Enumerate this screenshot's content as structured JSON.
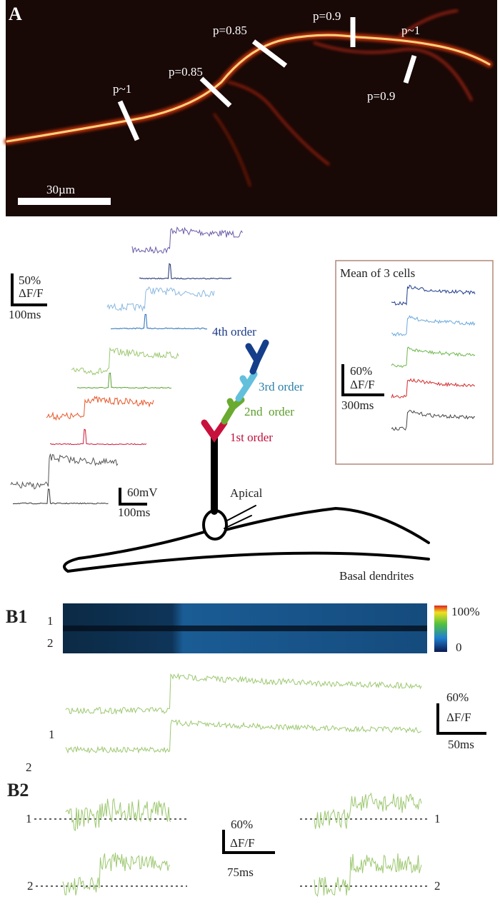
{
  "panel_a": {
    "label": "A",
    "labels": [
      "p~1",
      "p=0.85",
      "p=0.85",
      "p=0.9",
      "p~1",
      "p=0.9"
    ],
    "scale_bar": "30µm"
  },
  "schematic": {
    "scale_fluor": {
      "pct": "50%",
      "unit": "ΔF/F",
      "time": "100ms"
    },
    "orders": [
      "4th order",
      "3rd order",
      "2nd  order",
      "1st order"
    ],
    "apical": "Apical",
    "scale_mv": {
      "amp": "60mV",
      "time": "100ms"
    },
    "basal": "Basal dendrites",
    "inset": {
      "title": "Mean of 3 cells",
      "pct": "60%",
      "unit": "ΔF/F",
      "time": "300ms"
    }
  },
  "panel_b1": {
    "label": "B1",
    "rows": [
      "1",
      "2"
    ],
    "colorbar": [
      "100%",
      "0"
    ],
    "trace_label": "1",
    "scale": {
      "pct": "60%",
      "unit": "ΔF/F",
      "time": "50ms"
    }
  },
  "panel_b2": {
    "label": "B2",
    "left_labels": [
      "2",
      "1",
      "2"
    ],
    "right_labels": [
      "1",
      "2"
    ],
    "scale": {
      "pct": "60%",
      "unit": "ΔF/F",
      "time": "75ms"
    }
  }
}
